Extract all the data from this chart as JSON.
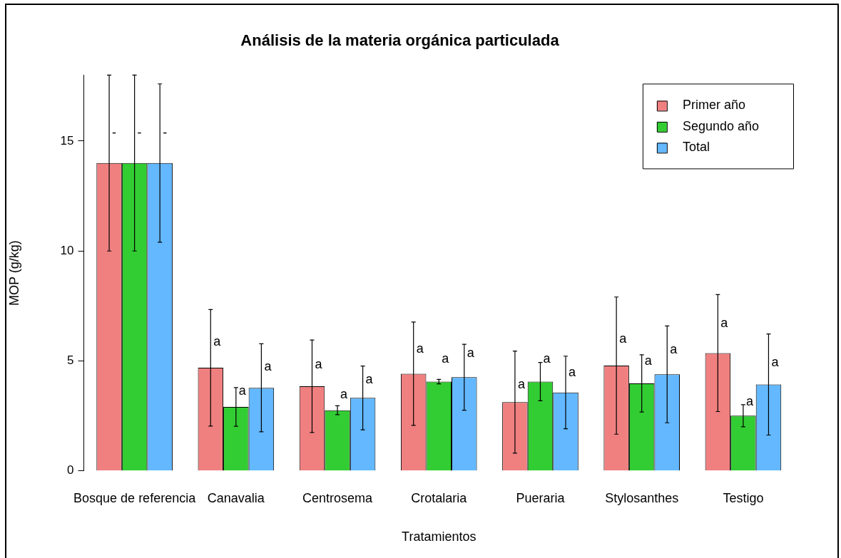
{
  "chart_data": {
    "type": "bar",
    "title": "Análisis de la materia orgánica particulada",
    "xlabel": "Tratamientos",
    "ylabel": "MOP (g/kg)",
    "categories": [
      "Bosque de referencia",
      "Canavalia",
      "Centrosema",
      "Crotalaria",
      "Pueraria",
      "Stylosanthes",
      "Testigo"
    ],
    "series": [
      {
        "name": "Primer año",
        "color": "#f08080",
        "values": [
          14.0,
          4.69,
          3.85,
          4.42,
          3.13,
          4.79,
          5.36
        ],
        "errors": [
          4.0,
          2.65,
          2.1,
          2.35,
          2.32,
          3.12,
          2.66
        ],
        "value_labels": [
          "-",
          "a",
          "a",
          "a",
          "a",
          "a",
          "a"
        ]
      },
      {
        "name": "Segundo año",
        "color": "#32cd32",
        "values": [
          14.0,
          2.91,
          2.76,
          4.06,
          4.06,
          3.98,
          2.51
        ],
        "errors": [
          4.0,
          0.88,
          0.2,
          0.1,
          0.87,
          1.3,
          0.5
        ],
        "value_labels": [
          "-",
          "a",
          "a",
          "a",
          "a",
          "a",
          "a"
        ]
      },
      {
        "name": "Total",
        "color": "#63b8ff",
        "values": [
          14.0,
          3.78,
          3.32,
          4.26,
          3.57,
          4.39,
          3.93
        ],
        "errors": [
          3.6,
          2.0,
          1.45,
          1.5,
          1.65,
          2.2,
          2.3
        ],
        "value_labels": [
          "-",
          "a",
          "a",
          "a",
          "a",
          "a",
          "a"
        ]
      }
    ],
    "ylim": [
      0,
      18
    ],
    "yticks": [
      0,
      5,
      10,
      15
    ],
    "legend": "top right"
  }
}
